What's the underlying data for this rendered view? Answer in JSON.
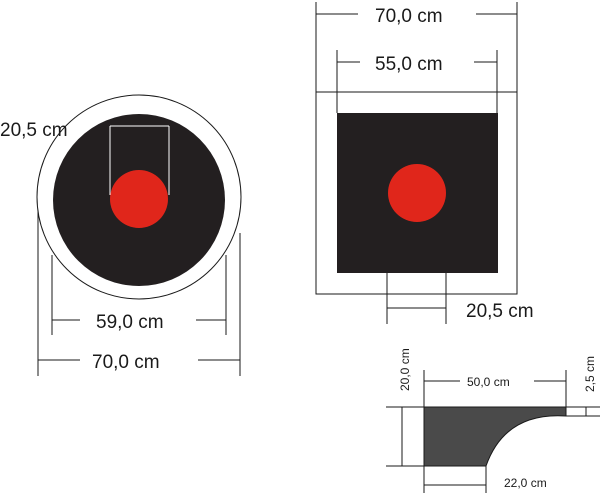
{
  "colors": {
    "target_fill": "#231f20",
    "bullseye": "#e0261b",
    "profile_fill": "#4a4a4a",
    "line": "#1a1a1a",
    "background": "#ffffff"
  },
  "round_target": {
    "outer_diameter": "70,0 cm",
    "inner_diameter": "59,0 cm",
    "bullseye_diameter": "20,5 cm"
  },
  "square_target": {
    "outer_width": "70,0 cm",
    "inner_width": "55,0 cm",
    "bullseye_diameter": "20,5 cm"
  },
  "profile": {
    "height": "20,0 cm",
    "top_length": "50,0 cm",
    "lip_height": "2,5 cm",
    "bottom_length": "22,0 cm"
  }
}
